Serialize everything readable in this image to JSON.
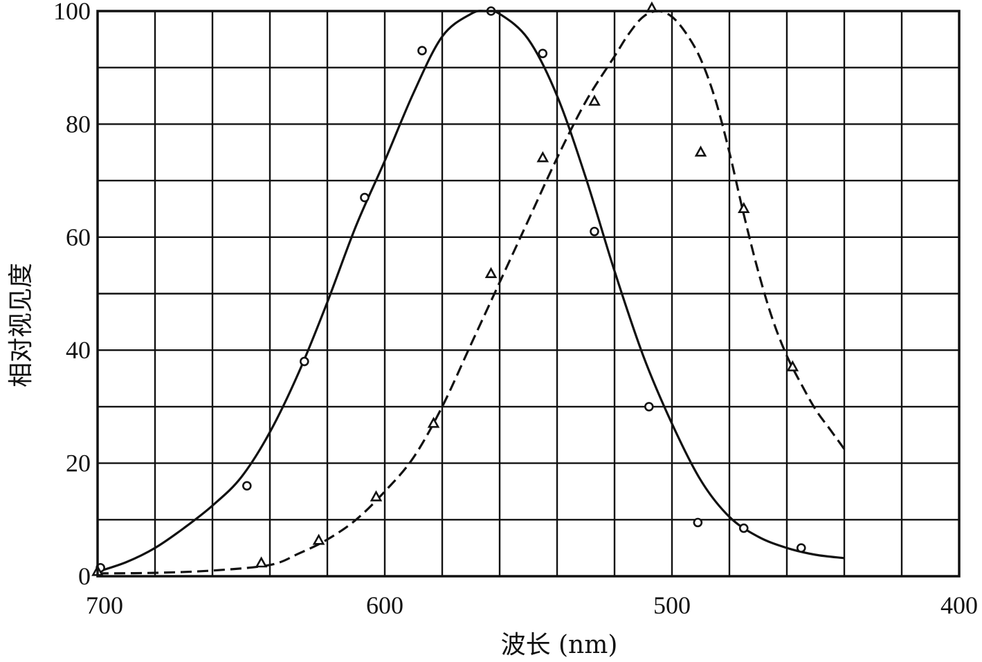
{
  "chart_data": {
    "type": "line",
    "xlabel": "波长 (nm)",
    "ylabel": "相对视见度",
    "xlim": [
      700,
      400
    ],
    "ylim": [
      0,
      100
    ],
    "x_ticks": [
      700,
      600,
      500,
      400
    ],
    "x_tick_labels": [
      "700",
      "600",
      "500",
      "400"
    ],
    "y_ticks": [
      0,
      20,
      40,
      60,
      80,
      100
    ],
    "y_tick_labels": [
      "0",
      "20",
      "40",
      "60",
      "80",
      "100"
    ],
    "x_minor_step": 20,
    "y_minor_step": 10,
    "grid": true,
    "series": [
      {
        "line_style": "solid",
        "marker": "circle",
        "curve": [
          [
            700,
            0.8
          ],
          [
            690,
            2.5
          ],
          [
            680,
            5
          ],
          [
            670,
            8.5
          ],
          [
            660,
            12.5
          ],
          [
            650,
            17.5
          ],
          [
            640,
            25.5
          ],
          [
            630,
            36
          ],
          [
            620,
            48.5
          ],
          [
            610,
            62
          ],
          [
            600,
            73.5
          ],
          [
            590,
            85.5
          ],
          [
            580,
            95.5
          ],
          [
            570,
            99.5
          ],
          [
            565,
            100
          ],
          [
            560,
            99.5
          ],
          [
            550,
            95
          ],
          [
            540,
            85
          ],
          [
            530,
            70.5
          ],
          [
            520,
            54
          ],
          [
            510,
            39
          ],
          [
            500,
            27
          ],
          [
            490,
            17
          ],
          [
            480,
            10.5
          ],
          [
            470,
            7
          ],
          [
            460,
            5
          ],
          [
            450,
            3.8
          ],
          [
            440,
            3.2
          ]
        ],
        "points": [
          [
            699,
            1.5
          ],
          [
            648,
            16
          ],
          [
            628,
            38
          ],
          [
            607,
            67
          ],
          [
            587,
            93
          ],
          [
            563,
            100
          ],
          [
            545,
            92.5
          ],
          [
            527,
            61
          ],
          [
            508,
            30
          ],
          [
            491,
            9.5
          ],
          [
            475,
            8.5
          ],
          [
            455,
            5
          ]
        ]
      },
      {
        "line_style": "dashed",
        "marker": "triangle",
        "curve": [
          [
            700,
            0.5
          ],
          [
            680,
            0.6
          ],
          [
            660,
            1
          ],
          [
            640,
            2
          ],
          [
            630,
            4
          ],
          [
            620,
            6.5
          ],
          [
            610,
            10
          ],
          [
            600,
            15
          ],
          [
            590,
            21
          ],
          [
            580,
            30
          ],
          [
            570,
            41
          ],
          [
            560,
            52
          ],
          [
            550,
            63
          ],
          [
            540,
            74
          ],
          [
            530,
            84
          ],
          [
            520,
            92
          ],
          [
            515,
            96
          ],
          [
            510,
            99
          ],
          [
            505,
            100
          ],
          [
            500,
            99
          ],
          [
            495,
            96
          ],
          [
            490,
            91.5
          ],
          [
            485,
            84.5
          ],
          [
            480,
            75
          ],
          [
            475,
            64
          ],
          [
            470,
            54
          ],
          [
            465,
            45.5
          ],
          [
            460,
            39
          ],
          [
            455,
            34
          ],
          [
            450,
            29.5
          ],
          [
            445,
            26
          ],
          [
            440,
            22.5
          ]
        ],
        "points": [
          [
            700,
            0.8
          ],
          [
            643,
            2.3
          ],
          [
            623,
            6.3
          ],
          [
            603,
            14
          ],
          [
            583,
            27
          ],
          [
            563,
            53.5
          ],
          [
            545,
            74
          ],
          [
            527,
            84
          ],
          [
            507,
            100.5
          ],
          [
            490,
            75
          ],
          [
            475,
            65
          ],
          [
            458,
            37
          ]
        ]
      }
    ]
  },
  "style": {
    "line_color": "#111111",
    "background": "#ffffff"
  }
}
